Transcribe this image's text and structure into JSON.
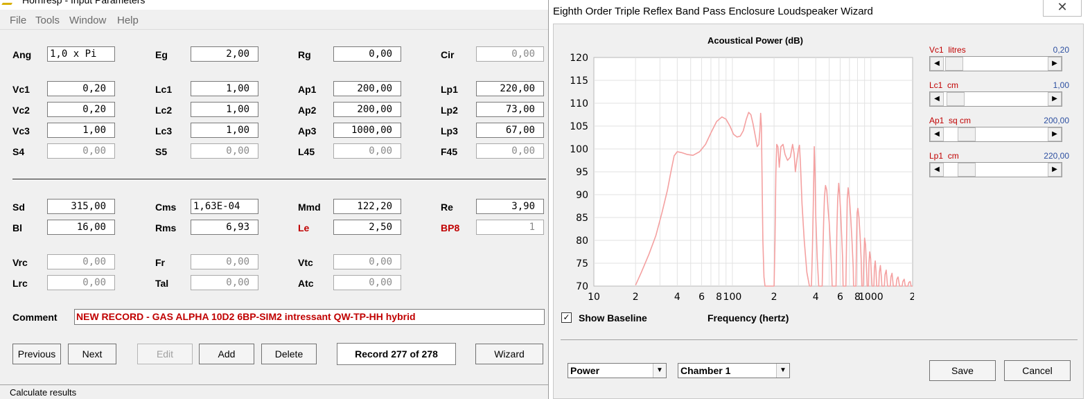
{
  "left_window": {
    "title": "Hornresp - Input Parameters",
    "menu": [
      "File",
      "Tools",
      "Window",
      "Help"
    ],
    "params": [
      {
        "label": "Ang",
        "value": "1,0 x Pi",
        "disabled": false,
        "align": "left"
      },
      {
        "label": "Eg",
        "value": "2,00",
        "disabled": false
      },
      {
        "label": "Rg",
        "value": "0,00",
        "disabled": false
      },
      {
        "label": "Cir",
        "value": "0,00",
        "disabled": true
      },
      {
        "label": "Vc1",
        "value": "0,20",
        "disabled": false
      },
      {
        "label": "Lc1",
        "value": "1,00",
        "disabled": false
      },
      {
        "label": "Ap1",
        "value": "200,00",
        "disabled": false
      },
      {
        "label": "Lp1",
        "value": "220,00",
        "disabled": false
      },
      {
        "label": "Vc2",
        "value": "0,20",
        "disabled": false
      },
      {
        "label": "Lc2",
        "value": "1,00",
        "disabled": false
      },
      {
        "label": "Ap2",
        "value": "200,00",
        "disabled": false
      },
      {
        "label": "Lp2",
        "value": "73,00",
        "disabled": false
      },
      {
        "label": "Vc3",
        "value": "1,00",
        "disabled": false
      },
      {
        "label": "Lc3",
        "value": "1,00",
        "disabled": false
      },
      {
        "label": "Ap3",
        "value": "1000,00",
        "disabled": false
      },
      {
        "label": "Lp3",
        "value": "67,00",
        "disabled": false
      },
      {
        "label": "S4",
        "value": "0,00",
        "disabled": true
      },
      {
        "label": "S5",
        "value": "0,00",
        "disabled": true
      },
      {
        "label": "L45",
        "value": "0,00",
        "disabled": true
      },
      {
        "label": "F45",
        "value": "0,00",
        "disabled": true
      },
      {
        "label": "Sd",
        "value": "315,00",
        "disabled": false
      },
      {
        "label": "Cms",
        "value": "1,63E-04",
        "disabled": false,
        "align": "left"
      },
      {
        "label": "Mmd",
        "value": "122,20",
        "disabled": false
      },
      {
        "label": "Re",
        "value": "3,90",
        "disabled": false
      },
      {
        "label": "Bl",
        "value": "16,00",
        "disabled": false
      },
      {
        "label": "Rms",
        "value": "6,93",
        "disabled": false
      },
      {
        "label": "Le",
        "value": "2,50",
        "disabled": false,
        "red": true
      },
      {
        "label": "BP8",
        "value": "1",
        "disabled": true,
        "red": true
      },
      {
        "label": "Vrc",
        "value": "0,00",
        "disabled": true
      },
      {
        "label": "Fr",
        "value": "0,00",
        "disabled": true
      },
      {
        "label": "Vtc",
        "value": "0,00",
        "disabled": true
      },
      {
        "label": "Lrc",
        "value": "0,00",
        "disabled": true
      },
      {
        "label": "Tal",
        "value": "0,00",
        "disabled": true
      },
      {
        "label": "Atc",
        "value": "0,00",
        "disabled": true
      }
    ],
    "comment_label": "Comment",
    "comment": "NEW RECORD - GAS ALPHA 10D2 6BP-SIM2 intressant QW-TP-HH hybrid",
    "buttons": {
      "previous": "Previous",
      "next": "Next",
      "edit": "Edit",
      "add": "Add",
      "delete": "Delete",
      "wizard": "Wizard"
    },
    "record": "Record 277 of 278",
    "status": "Calculate results"
  },
  "wizard": {
    "title": "Eighth Order Triple Reflex Band Pass Enclosure Loudspeaker Wizard",
    "close_glyph": "✕",
    "show_baseline_label": "Show Baseline",
    "show_baseline_checked": true,
    "check_glyph": "✓",
    "dropdown_glyph": "▼",
    "scroll_left_glyph": "◀",
    "scroll_right_glyph": "▶",
    "combo_type": "Power",
    "combo_chamber": "Chamber 1",
    "save_label": "Save",
    "cancel_label": "Cancel",
    "sliders": [
      {
        "name": "Vc1",
        "unit": "litres",
        "value": "0,20",
        "level": 0.02
      },
      {
        "name": "Lc1",
        "unit": "cm",
        "value": "1,00",
        "level": 0.03
      },
      {
        "name": "Ap1",
        "unit": "sq cm",
        "value": "200,00",
        "level": 0.16
      },
      {
        "name": "Lp1",
        "unit": "cm",
        "value": "220,00",
        "level": 0.16
      }
    ]
  },
  "chart_data": {
    "type": "line",
    "title": "Acoustical Power (dB)",
    "xlabel": "Frequency (hertz)",
    "ylabel": "",
    "x_scale": "log",
    "xlim": [
      10,
      2000
    ],
    "ylim": [
      70,
      120
    ],
    "yticks": [
      70,
      75,
      80,
      85,
      90,
      95,
      100,
      105,
      110,
      115,
      120
    ],
    "xtick_labels": [
      "10",
      "2",
      "4",
      "6",
      "8",
      "100",
      "2",
      "4",
      "6",
      "8",
      "1000",
      "2"
    ],
    "xtick_values": [
      10,
      20,
      40,
      60,
      80,
      100,
      200,
      400,
      600,
      800,
      1000,
      2000
    ],
    "grid": true,
    "series_color": "#f4a0a0",
    "series": [
      {
        "name": "",
        "points": [
          [
            20,
            70.2
          ],
          [
            22,
            73
          ],
          [
            25,
            77
          ],
          [
            28,
            81
          ],
          [
            31,
            86
          ],
          [
            34,
            91
          ],
          [
            36,
            95
          ],
          [
            38,
            98.5
          ],
          [
            40,
            99.4
          ],
          [
            43,
            99.2
          ],
          [
            47,
            98.8
          ],
          [
            52,
            98.6
          ],
          [
            58,
            99.4
          ],
          [
            64,
            101
          ],
          [
            70,
            103.5
          ],
          [
            77,
            106
          ],
          [
            84,
            107
          ],
          [
            90,
            106.5
          ],
          [
            96,
            105
          ],
          [
            102,
            103.2
          ],
          [
            108,
            102.6
          ],
          [
            114,
            102.8
          ],
          [
            120,
            104
          ],
          [
            126,
            106.5
          ],
          [
            131,
            108
          ],
          [
            136,
            107.5
          ],
          [
            141,
            105.5
          ],
          [
            147,
            102.5
          ],
          [
            151,
            100.5
          ],
          [
            155,
            101
          ],
          [
            158,
            104
          ],
          [
            160,
            107.8
          ],
          [
            162,
            105
          ],
          [
            164,
            92
          ],
          [
            166,
            80
          ],
          [
            169,
            72
          ],
          [
            172,
            70
          ],
          [
            200,
            70
          ],
          [
            203,
            80
          ],
          [
            206,
            95
          ],
          [
            209,
            101
          ],
          [
            213,
            100.5
          ],
          [
            218,
            96
          ],
          [
            224,
            100.5
          ],
          [
            232,
            101
          ],
          [
            240,
            98.8
          ],
          [
            250,
            97.5
          ],
          [
            262,
            98.2
          ],
          [
            272,
            101
          ],
          [
            279,
            99
          ],
          [
            285,
            95
          ],
          [
            292,
            97.5
          ],
          [
            300,
            100
          ],
          [
            305,
            100.8
          ],
          [
            310,
            97
          ],
          [
            318,
            88
          ],
          [
            330,
            80
          ],
          [
            345,
            73
          ],
          [
            360,
            70
          ],
          [
            372,
            70
          ],
          [
            378,
            78
          ],
          [
            384,
            88
          ],
          [
            390,
            100.5
          ],
          [
            395,
            95
          ],
          [
            400,
            85
          ],
          [
            410,
            76
          ],
          [
            420,
            70
          ],
          [
            445,
            70
          ],
          [
            450,
            77
          ],
          [
            456,
            84
          ],
          [
            462,
            89.5
          ],
          [
            470,
            92
          ],
          [
            480,
            91
          ],
          [
            490,
            87
          ],
          [
            500,
            84
          ],
          [
            510,
            79
          ],
          [
            520,
            74
          ],
          [
            525,
            70
          ],
          [
            560,
            70
          ],
          [
            568,
            82
          ],
          [
            576,
            89
          ],
          [
            586,
            92.5
          ],
          [
            595,
            90
          ],
          [
            605,
            86
          ],
          [
            615,
            81
          ],
          [
            625,
            76
          ],
          [
            630,
            70
          ],
          [
            660,
            70
          ],
          [
            667,
            80
          ],
          [
            675,
            89
          ],
          [
            685,
            91.5
          ],
          [
            700,
            89
          ],
          [
            715,
            85
          ],
          [
            730,
            80
          ],
          [
            745,
            74
          ],
          [
            750,
            70
          ],
          [
            780,
            70
          ],
          [
            787,
            79
          ],
          [
            795,
            86
          ],
          [
            805,
            87
          ],
          [
            820,
            85
          ],
          [
            835,
            81
          ],
          [
            850,
            76
          ],
          [
            860,
            70
          ],
          [
            880,
            70
          ],
          [
            890,
            76
          ],
          [
            900,
            80.5
          ],
          [
            915,
            79
          ],
          [
            930,
            74
          ],
          [
            940,
            70
          ],
          [
            960,
            70
          ],
          [
            968,
            75
          ],
          [
            980,
            77.5
          ],
          [
            995,
            76
          ],
          [
            1010,
            72
          ],
          [
            1020,
            70
          ],
          [
            1050,
            70
          ],
          [
            1060,
            74
          ],
          [
            1075,
            75.5
          ],
          [
            1090,
            73
          ],
          [
            1100,
            70
          ],
          [
            1140,
            70
          ],
          [
            1150,
            73
          ],
          [
            1170,
            74.5
          ],
          [
            1190,
            72
          ],
          [
            1200,
            70
          ],
          [
            1250,
            70
          ],
          [
            1265,
            72.5
          ],
          [
            1290,
            73.5
          ],
          [
            1310,
            71
          ],
          [
            1320,
            70
          ],
          [
            1380,
            70
          ],
          [
            1395,
            72
          ],
          [
            1420,
            72.8
          ],
          [
            1440,
            71
          ],
          [
            1450,
            70
          ],
          [
            1520,
            70
          ],
          [
            1540,
            71.5
          ],
          [
            1570,
            72
          ],
          [
            1600,
            70.5
          ],
          [
            1610,
            70
          ],
          [
            1680,
            70
          ],
          [
            1700,
            71
          ],
          [
            1740,
            71.5
          ],
          [
            1770,
            70
          ],
          [
            1850,
            70
          ],
          [
            1880,
            70.8
          ],
          [
            1920,
            71
          ],
          [
            1950,
            70
          ],
          [
            2000,
            70
          ]
        ]
      }
    ]
  }
}
